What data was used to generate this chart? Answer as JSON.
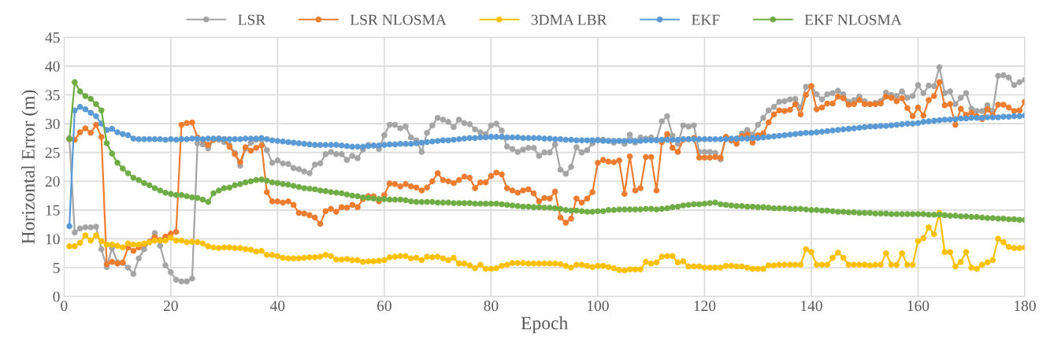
{
  "chart_data": {
    "type": "line",
    "xlabel": "Epoch",
    "ylabel": "Horizontal Error (m)",
    "x": [
      1,
      2,
      3,
      4,
      5,
      6,
      7,
      8,
      9,
      10,
      11,
      12,
      13,
      14,
      15,
      16,
      17,
      18,
      19,
      20,
      21,
      22,
      23,
      24,
      25,
      26,
      27,
      28,
      29,
      30,
      31,
      32,
      33,
      34,
      35,
      36,
      37,
      38,
      39,
      40,
      41,
      42,
      43,
      44,
      45,
      46,
      47,
      48,
      49,
      50,
      51,
      52,
      53,
      54,
      55,
      56,
      57,
      58,
      59,
      60,
      61,
      62,
      63,
      64,
      65,
      66,
      67,
      68,
      69,
      70,
      71,
      72,
      73,
      74,
      75,
      76,
      77,
      78,
      79,
      80,
      81,
      82,
      83,
      84,
      85,
      86,
      87,
      88,
      89,
      90,
      91,
      92,
      93,
      94,
      95,
      96,
      97,
      98,
      99,
      100,
      101,
      102,
      103,
      104,
      105,
      106,
      107,
      108,
      109,
      110,
      111,
      112,
      113,
      114,
      115,
      116,
      117,
      118,
      119,
      120,
      121,
      122,
      123,
      124,
      125,
      126,
      127,
      128,
      129,
      130,
      131,
      132,
      133,
      134,
      135,
      136,
      137,
      138,
      139,
      140,
      141,
      142,
      143,
      144,
      145,
      146,
      147,
      148,
      149,
      150,
      151,
      152,
      153,
      154,
      155,
      156,
      157,
      158,
      159,
      160,
      161,
      162,
      163,
      164,
      165,
      166,
      167,
      168,
      169,
      170,
      171,
      172,
      173,
      174,
      175,
      176,
      177,
      178,
      179,
      180
    ],
    "series": [
      {
        "name": "LSR",
        "color": "#a5a5a5",
        "values": [
          27.5,
          11.1,
          11.8,
          12.0,
          12.0,
          12.1,
          8.2,
          5.1,
          8.4,
          5.9,
          5.8,
          5.0,
          3.9,
          6.6,
          8.2,
          9.5,
          11.0,
          8.8,
          5.4,
          4.2,
          2.9,
          2.6,
          2.6,
          3.1,
          26.6,
          26.4,
          25.7,
          27.2,
          27.2,
          26.8,
          26.3,
          24.9,
          22.7,
          25.7,
          26.7,
          27.2,
          27.2,
          25.4,
          23.2,
          23.6,
          23.1,
          23.0,
          22.3,
          22.1,
          21.7,
          21.4,
          22.9,
          23.1,
          24.7,
          25.1,
          24.7,
          24.7,
          23.7,
          24.4,
          24.0,
          25.5,
          26.3,
          26.2,
          25.6,
          28.0,
          29.8,
          29.8,
          29.2,
          29.5,
          27.6,
          27.1,
          25.1,
          28.4,
          29.7,
          31.0,
          30.7,
          30.3,
          29.4,
          30.7,
          30.1,
          29.9,
          29.0,
          28.5,
          28.2,
          29.7,
          30.0,
          28.8,
          26.0,
          25.6,
          25.1,
          25.5,
          25.8,
          25.8,
          24.4,
          25.0,
          25.0,
          26.4,
          22.0,
          21.3,
          22.5,
          25.9,
          25.0,
          25.4,
          26.6,
          27.2,
          27.2,
          27.0,
          26.7,
          27.0,
          26.5,
          28.1,
          26.7,
          27.6,
          27.4,
          27.6,
          27.2,
          30.4,
          31.3,
          27.9,
          26.5,
          29.7,
          29.5,
          29.7,
          25.1,
          25.1,
          25.1,
          24.9,
          23.8,
          27.6,
          27.0,
          27.4,
          28.3,
          28.9,
          28.1,
          29.8,
          31.0,
          32.3,
          32.9,
          33.8,
          33.9,
          34.2,
          34.3,
          32.8,
          36.4,
          36.5,
          35.1,
          34.2,
          35.1,
          35.3,
          35.7,
          35.1,
          33.8,
          34.1,
          34.7,
          33.9,
          33.4,
          33.6,
          33.9,
          35.4,
          35.0,
          34.8,
          35.6,
          34.5,
          34.8,
          36.7,
          35.3,
          36.6,
          36.5,
          39.8,
          35.3,
          35.6,
          33.4,
          34.5,
          35.3,
          32.6,
          32.2,
          32.2,
          33.2,
          32.2,
          38.3,
          38.4,
          38.0,
          36.7,
          37.2,
          37.6
        ]
      },
      {
        "name": "LSR NLOSMA",
        "color": "#ed7d31",
        "values": [
          27.3,
          27.2,
          28.5,
          29.2,
          28.4,
          29.8,
          27.7,
          5.6,
          6.0,
          5.7,
          5.9,
          8.5,
          7.9,
          8.5,
          9.1,
          9.5,
          10.3,
          9.8,
          10.4,
          10.9,
          11.2,
          29.8,
          30.1,
          30.2,
          27.6,
          27.2,
          26.3,
          27.2,
          27.4,
          27.3,
          26.0,
          24.7,
          23.3,
          25.9,
          25.3,
          25.8,
          26.2,
          18.1,
          16.5,
          16.5,
          16.3,
          16.5,
          15.9,
          14.5,
          14.4,
          14.1,
          13.7,
          12.6,
          14.8,
          15.2,
          14.7,
          15.5,
          15.4,
          15.9,
          15.5,
          16.9,
          17.4,
          17.4,
          16.5,
          17.6,
          19.6,
          19.5,
          19.1,
          19.5,
          19.1,
          18.9,
          18.4,
          18.9,
          20.0,
          21.4,
          20.2,
          20.0,
          19.7,
          20.2,
          20.8,
          20.6,
          18.8,
          19.8,
          19.8,
          20.9,
          21.5,
          21.2,
          18.8,
          18.4,
          18.0,
          18.4,
          18.6,
          17.9,
          16.5,
          17.1,
          17.0,
          18.2,
          13.7,
          12.8,
          13.5,
          17.0,
          16.3,
          17.0,
          18.1,
          23.2,
          23.7,
          23.4,
          23.3,
          23.6,
          17.8,
          24.3,
          18.4,
          18.8,
          24.2,
          24.2,
          18.4,
          26.8,
          28.2,
          25.8,
          25.1,
          27.2,
          27.3,
          27.5,
          24.1,
          24.1,
          24.1,
          24.2,
          24.1,
          27.7,
          27.2,
          26.5,
          27.8,
          28.1,
          26.7,
          28.0,
          28.3,
          30.2,
          31.6,
          32.3,
          32.2,
          32.4,
          33.4,
          31.6,
          35.0,
          36.5,
          32.5,
          32.8,
          33.5,
          33.5,
          34.7,
          34.4,
          33.3,
          33.4,
          34.1,
          33.4,
          33.4,
          33.4,
          33.5,
          34.7,
          34.5,
          33.9,
          34.4,
          32.7,
          31.3,
          32.8,
          31.4,
          34.1,
          34.8,
          37.2,
          33.2,
          33.4,
          29.8,
          32.6,
          31.5,
          31.9,
          31.3,
          30.8,
          32.5,
          31.4,
          33.3,
          33.3,
          32.8,
          32.2,
          32.3,
          33.8
        ]
      },
      {
        "name": "3DMA LBR",
        "color": "#ffc000",
        "values": [
          8.7,
          8.7,
          9.3,
          10.6,
          9.7,
          10.6,
          9.6,
          9.0,
          9.0,
          8.8,
          8.5,
          9.2,
          9.0,
          9.0,
          9.2,
          9.4,
          9.7,
          9.7,
          9.7,
          10.2,
          9.7,
          9.7,
          9.4,
          9.5,
          9.4,
          9.2,
          8.7,
          8.5,
          8.4,
          8.5,
          8.5,
          8.4,
          8.4,
          8.2,
          8.1,
          7.8,
          7.9,
          7.2,
          7.2,
          7.0,
          6.7,
          6.6,
          6.6,
          6.6,
          6.7,
          6.8,
          6.8,
          6.9,
          7.2,
          7.0,
          6.4,
          6.4,
          6.5,
          6.3,
          6.3,
          6.0,
          6.1,
          6.1,
          6.2,
          6.3,
          6.8,
          6.9,
          7.0,
          7.0,
          6.6,
          6.7,
          6.3,
          6.9,
          6.8,
          6.9,
          6.6,
          6.3,
          6.7,
          5.7,
          5.7,
          5.4,
          4.9,
          5.5,
          4.8,
          4.8,
          4.9,
          5.3,
          5.5,
          5.8,
          5.8,
          5.8,
          5.7,
          5.7,
          5.7,
          5.7,
          5.7,
          5.7,
          5.6,
          5.3,
          5.0,
          5.5,
          5.5,
          5.3,
          5.1,
          5.3,
          5.3,
          5.1,
          4.9,
          4.6,
          4.5,
          4.7,
          4.7,
          4.7,
          6.0,
          5.7,
          5.9,
          6.9,
          7.0,
          7.0,
          5.9,
          6.1,
          5.2,
          5.2,
          5.2,
          5.0,
          5.0,
          5.0,
          5.0,
          5.3,
          5.3,
          5.2,
          5.2,
          5.0,
          4.8,
          4.8,
          4.8,
          5.4,
          5.4,
          5.5,
          5.5,
          5.5,
          5.5,
          5.5,
          8.2,
          7.7,
          5.5,
          5.5,
          5.5,
          6.7,
          7.6,
          6.7,
          5.5,
          5.5,
          5.5,
          5.5,
          5.4,
          5.5,
          5.5,
          7.5,
          5.5,
          5.5,
          7.5,
          5.5,
          5.5,
          9.6,
          10.1,
          12.0,
          10.8,
          14.5,
          7.7,
          7.7,
          5.2,
          6.0,
          7.7,
          5.0,
          4.8,
          5.5,
          5.9,
          6.3,
          10.0,
          9.4,
          8.6,
          8.4,
          8.4,
          8.5
        ]
      },
      {
        "name": "EKF",
        "color": "#5b9bd5",
        "values": [
          12.2,
          32.3,
          32.9,
          32.5,
          31.9,
          31.3,
          30.0,
          28.9,
          29.1,
          28.5,
          28.2,
          28.0,
          27.4,
          27.3,
          27.3,
          27.3,
          27.3,
          27.3,
          27.2,
          27.3,
          27.2,
          27.3,
          27.3,
          27.4,
          27.4,
          27.3,
          27.4,
          27.4,
          27.4,
          27.3,
          27.3,
          27.3,
          27.3,
          27.4,
          27.4,
          27.4,
          27.5,
          27.3,
          27.1,
          27.0,
          26.9,
          26.8,
          26.7,
          26.6,
          26.5,
          26.4,
          26.3,
          26.3,
          26.3,
          26.3,
          26.3,
          26.2,
          26.1,
          26.0,
          26.0,
          26.0,
          26.1,
          26.2,
          26.2,
          26.3,
          26.4,
          26.4,
          26.5,
          26.5,
          26.5,
          26.6,
          26.7,
          26.8,
          26.9,
          27.0,
          27.1,
          27.1,
          27.2,
          27.3,
          27.4,
          27.5,
          27.5,
          27.6,
          27.6,
          27.7,
          27.7,
          27.7,
          27.6,
          27.6,
          27.6,
          27.5,
          27.5,
          27.5,
          27.5,
          27.4,
          27.4,
          27.3,
          27.3,
          27.2,
          27.2,
          27.1,
          27.1,
          27.1,
          27.1,
          27.1,
          27.0,
          27.0,
          27.0,
          27.0,
          27.0,
          27.0,
          27.0,
          27.0,
          27.1,
          27.1,
          27.1,
          27.2,
          27.2,
          27.2,
          27.2,
          27.3,
          27.3,
          27.3,
          27.3,
          27.3,
          27.3,
          27.3,
          27.3,
          27.3,
          27.4,
          27.4,
          27.4,
          27.4,
          27.5,
          27.5,
          27.6,
          27.7,
          27.8,
          27.9,
          28.0,
          28.1,
          28.2,
          28.3,
          28.4,
          28.4,
          28.5,
          28.6,
          28.7,
          28.8,
          28.9,
          29.0,
          29.1,
          29.2,
          29.3,
          29.4,
          29.5,
          29.5,
          29.6,
          29.6,
          29.7,
          29.8,
          29.9,
          30.0,
          30.0,
          30.1,
          30.3,
          30.4,
          30.5,
          30.6,
          30.7,
          30.7,
          30.8,
          30.9,
          30.9,
          31.0,
          31.0,
          31.0,
          31.1,
          31.1,
          31.1,
          31.2,
          31.2,
          31.3,
          31.3,
          31.4
        ]
      },
      {
        "name": "EKF NLOSMA",
        "color": "#70ad47",
        "values": [
          27.3,
          37.2,
          35.6,
          34.8,
          34.3,
          33.4,
          32.3,
          26.6,
          24.8,
          23.2,
          22.2,
          21.4,
          20.6,
          20.2,
          19.7,
          19.3,
          18.8,
          18.4,
          18.0,
          17.8,
          17.6,
          17.6,
          17.4,
          17.2,
          17.1,
          16.8,
          16.4,
          17.9,
          18.4,
          18.8,
          18.9,
          19.3,
          19.5,
          19.8,
          20.0,
          20.2,
          20.3,
          20.1,
          19.8,
          19.7,
          19.5,
          19.4,
          19.2,
          19.0,
          18.8,
          18.7,
          18.6,
          18.4,
          18.3,
          18.1,
          18.0,
          17.9,
          17.7,
          17.5,
          17.4,
          17.2,
          17.1,
          17.0,
          16.9,
          16.9,
          16.8,
          16.8,
          16.8,
          16.7,
          16.5,
          16.4,
          16.4,
          16.4,
          16.4,
          16.3,
          16.3,
          16.3,
          16.2,
          16.2,
          16.2,
          16.2,
          16.1,
          16.1,
          16.1,
          16.1,
          16.1,
          16.0,
          15.9,
          15.8,
          15.7,
          15.6,
          15.6,
          15.5,
          15.5,
          15.4,
          15.4,
          15.3,
          15.2,
          15.0,
          14.9,
          14.9,
          14.8,
          14.7,
          14.7,
          14.8,
          14.8,
          15.0,
          15.0,
          15.1,
          15.1,
          15.1,
          15.1,
          15.1,
          15.2,
          15.2,
          15.1,
          15.2,
          15.3,
          15.5,
          15.6,
          15.8,
          15.9,
          16.0,
          16.0,
          16.1,
          16.2,
          16.3,
          16.0,
          15.9,
          15.8,
          15.7,
          15.7,
          15.6,
          15.6,
          15.5,
          15.5,
          15.4,
          15.3,
          15.3,
          15.3,
          15.2,
          15.2,
          15.2,
          15.1,
          15.0,
          15.0,
          14.9,
          14.9,
          14.8,
          14.7,
          14.7,
          14.6,
          14.6,
          14.5,
          14.5,
          14.5,
          14.4,
          14.4,
          14.4,
          14.3,
          14.3,
          14.3,
          14.3,
          14.3,
          14.3,
          14.3,
          14.2,
          14.2,
          14.2,
          14.1,
          14.0,
          14.0,
          13.9,
          13.9,
          13.8,
          13.8,
          13.7,
          13.6,
          13.6,
          13.5,
          13.5,
          13.4,
          13.4,
          13.3,
          13.3
        ]
      }
    ],
    "xlim": [
      0,
      180
    ],
    "xticks": [
      0,
      20,
      40,
      60,
      80,
      100,
      120,
      140,
      160,
      180
    ],
    "ylim": [
      0,
      45
    ],
    "yticks": [
      0,
      5,
      10,
      15,
      20,
      25,
      30,
      35,
      40,
      45
    ],
    "grid": true,
    "legend": "top",
    "marker": "circle",
    "line_style": "solid"
  }
}
